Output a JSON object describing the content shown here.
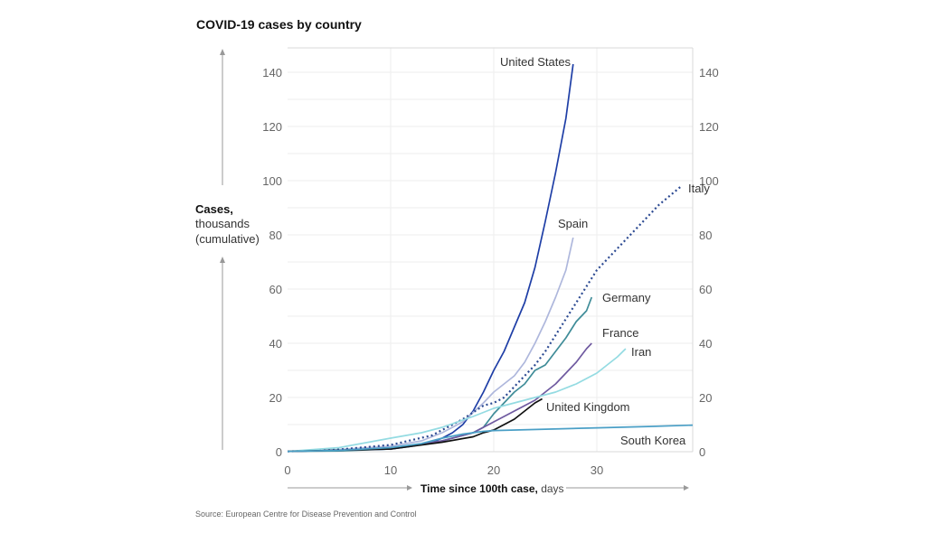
{
  "chart_data": {
    "type": "line",
    "title": "COVID-19 cases by country",
    "ylabel_bold": "Cases,",
    "ylabel_rest": [
      "thousands",
      "(cumulative)"
    ],
    "xlabel_bold": "Time since 100th case,",
    "xlabel_rest": " days",
    "source": "Source: European Centre for Disease Prevention and Control",
    "xlim": [
      0,
      39.3
    ],
    "ylim": [
      0,
      149
    ],
    "xticks": [
      0,
      10,
      20,
      30
    ],
    "yticks": [
      0,
      20,
      40,
      60,
      80,
      100,
      120,
      140
    ],
    "grid": true,
    "legend": "inline labels at line ends",
    "series": [
      {
        "name": "United States",
        "color": "#1e3ea6",
        "dashed": false,
        "points": [
          [
            0,
            0.1
          ],
          [
            5,
            0.5
          ],
          [
            10,
            1
          ],
          [
            12,
            2
          ],
          [
            14,
            3.5
          ],
          [
            15,
            5
          ],
          [
            16,
            7
          ],
          [
            17,
            10
          ],
          [
            18,
            15
          ],
          [
            19,
            22
          ],
          [
            20,
            30
          ],
          [
            21,
            37
          ],
          [
            22,
            46
          ],
          [
            23,
            55
          ],
          [
            24,
            68
          ],
          [
            25,
            85
          ],
          [
            26,
            103
          ],
          [
            27,
            123
          ],
          [
            27.7,
            143
          ]
        ]
      },
      {
        "name": "Spain",
        "color": "#aeb7dc",
        "dashed": false,
        "points": [
          [
            0,
            0.1
          ],
          [
            5,
            0.8
          ],
          [
            10,
            2
          ],
          [
            13,
            4
          ],
          [
            15,
            7
          ],
          [
            17,
            11
          ],
          [
            19,
            18
          ],
          [
            20,
            22
          ],
          [
            21,
            25
          ],
          [
            22,
            28
          ],
          [
            23,
            33
          ],
          [
            24,
            40
          ],
          [
            25,
            48
          ],
          [
            26,
            57
          ],
          [
            27,
            67
          ],
          [
            27.7,
            79
          ]
        ]
      },
      {
        "name": "Italy",
        "color": "#2c4a92",
        "dashed": true,
        "points": [
          [
            0,
            0.1
          ],
          [
            5,
            0.8
          ],
          [
            10,
            2.5
          ],
          [
            14,
            6
          ],
          [
            17,
            12
          ],
          [
            19,
            17
          ],
          [
            20,
            18
          ],
          [
            21,
            20
          ],
          [
            22,
            24
          ],
          [
            23,
            28
          ],
          [
            24,
            32
          ],
          [
            25,
            37
          ],
          [
            26,
            43
          ],
          [
            27,
            49
          ],
          [
            28,
            55
          ],
          [
            29,
            61
          ],
          [
            30,
            67
          ],
          [
            32,
            75
          ],
          [
            34,
            83
          ],
          [
            36,
            91
          ],
          [
            38.2,
            98
          ]
        ]
      },
      {
        "name": "Germany",
        "color": "#3f8c98",
        "dashed": false,
        "points": [
          [
            0,
            0.1
          ],
          [
            5,
            0.3
          ],
          [
            10,
            1
          ],
          [
            15,
            4
          ],
          [
            18,
            7
          ],
          [
            19,
            9
          ],
          [
            20,
            14
          ],
          [
            21,
            18
          ],
          [
            22,
            22
          ],
          [
            23,
            25
          ],
          [
            24,
            30
          ],
          [
            25,
            32
          ],
          [
            26,
            37
          ],
          [
            27,
            42
          ],
          [
            28,
            48
          ],
          [
            29,
            52
          ],
          [
            29.5,
            57
          ]
        ]
      },
      {
        "name": "France",
        "color": "#6f5aa0",
        "dashed": false,
        "points": [
          [
            0,
            0.1
          ],
          [
            10,
            1
          ],
          [
            15,
            4
          ],
          [
            18,
            7
          ],
          [
            20,
            11
          ],
          [
            22,
            15
          ],
          [
            24,
            19
          ],
          [
            25,
            22
          ],
          [
            26,
            25
          ],
          [
            27,
            29
          ],
          [
            28,
            33
          ],
          [
            29,
            38
          ],
          [
            29.5,
            40
          ]
        ]
      },
      {
        "name": "Iran",
        "color": "#94dbe2",
        "dashed": false,
        "points": [
          [
            0,
            0.1
          ],
          [
            5,
            1.5
          ],
          [
            10,
            5
          ],
          [
            13,
            7
          ],
          [
            15,
            9
          ],
          [
            18,
            13
          ],
          [
            20,
            16
          ],
          [
            22,
            18
          ],
          [
            24,
            20
          ],
          [
            26,
            22
          ],
          [
            28,
            25
          ],
          [
            30,
            29
          ],
          [
            32,
            35
          ],
          [
            32.8,
            38
          ]
        ]
      },
      {
        "name": "United Kingdom",
        "color": "#111111",
        "dashed": false,
        "points": [
          [
            0,
            0.1
          ],
          [
            10,
            1
          ],
          [
            15,
            3.5
          ],
          [
            18,
            5.5
          ],
          [
            19,
            7
          ],
          [
            20,
            8
          ],
          [
            21,
            10
          ],
          [
            22,
            12
          ],
          [
            23,
            15
          ],
          [
            24,
            18
          ],
          [
            24.7,
            19.5
          ]
        ]
      },
      {
        "name": "South Korea",
        "color": "#4a9fc6",
        "dashed": false,
        "points": [
          [
            0,
            0.1
          ],
          [
            5,
            0.5
          ],
          [
            10,
            1.5
          ],
          [
            13,
            3
          ],
          [
            15,
            5
          ],
          [
            17,
            6.5
          ],
          [
            19,
            7.5
          ],
          [
            20,
            7.8
          ],
          [
            25,
            8.3
          ],
          [
            30,
            8.8
          ],
          [
            35,
            9.3
          ],
          [
            39.3,
            9.8
          ]
        ]
      }
    ]
  }
}
